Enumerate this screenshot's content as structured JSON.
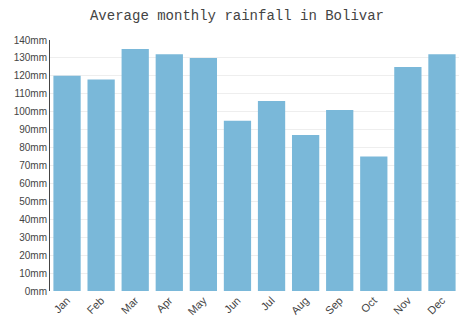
{
  "chart_data": {
    "type": "bar",
    "title": "Average monthly rainfall in Bolivar",
    "categories": [
      "Jan",
      "Feb",
      "Mar",
      "Apr",
      "May",
      "Jun",
      "Jul",
      "Aug",
      "Sep",
      "Oct",
      "Nov",
      "Dec"
    ],
    "values": [
      120,
      118,
      135,
      132,
      130,
      95,
      106,
      87,
      101,
      75,
      125,
      132
    ],
    "color": "#7ab8d9",
    "ylim": [
      0,
      140
    ],
    "yticks": [
      {
        "value": 0,
        "label": "0mm"
      },
      {
        "value": 10,
        "label": "10mm"
      },
      {
        "value": 20,
        "label": "20mm"
      },
      {
        "value": 30,
        "label": "30mm"
      },
      {
        "value": 40,
        "label": "40mm"
      },
      {
        "value": 50,
        "label": "50mm"
      },
      {
        "value": 60,
        "label": "60mm"
      },
      {
        "value": 70,
        "label": "70mm"
      },
      {
        "value": 80,
        "label": "80mm"
      },
      {
        "value": 90,
        "label": "90mm"
      },
      {
        "value": 100,
        "label": "100mm"
      },
      {
        "value": 110,
        "label": "110mm"
      },
      {
        "value": 120,
        "label": "120mm"
      },
      {
        "value": 130,
        "label": "130mm"
      },
      {
        "value": 140,
        "label": "140mm"
      }
    ],
    "grid": true
  }
}
